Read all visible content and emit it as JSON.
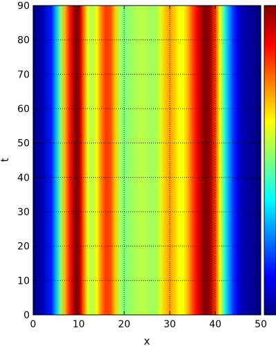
{
  "chart_data": {
    "type": "heatmap",
    "title": "",
    "xlabel": "x",
    "ylabel": "t",
    "xlim": [
      0,
      50
    ],
    "ylim": [
      0,
      90
    ],
    "x_ticks": [
      0,
      10,
      20,
      30,
      40,
      50
    ],
    "y_ticks": [
      0,
      10,
      20,
      30,
      40,
      50,
      60,
      70,
      80,
      90
    ],
    "grid": true,
    "grid_style": "dotted",
    "colormap": "jet",
    "colorbar": true,
    "colorbar_tick_labels": false,
    "pattern": "constant in t",
    "profile": {
      "x": [
        0,
        2,
        4,
        5,
        6,
        7,
        8,
        9,
        9.5,
        10,
        10.5,
        11,
        12,
        13,
        14,
        15,
        16,
        17,
        18,
        19,
        20,
        21,
        22,
        23,
        24,
        25,
        26,
        27,
        28,
        29,
        30,
        31,
        32,
        33,
        34,
        35,
        36,
        37,
        38,
        39,
        40,
        41,
        42,
        43,
        44,
        45,
        46,
        48,
        50
      ],
      "value": [
        0.0,
        0.05,
        0.15,
        0.3,
        0.5,
        0.7,
        0.85,
        0.96,
        1.0,
        0.97,
        0.9,
        0.78,
        0.6,
        0.55,
        0.62,
        0.75,
        0.82,
        0.8,
        0.68,
        0.55,
        0.5,
        0.52,
        0.54,
        0.55,
        0.56,
        0.55,
        0.53,
        0.54,
        0.6,
        0.68,
        0.72,
        0.68,
        0.62,
        0.62,
        0.7,
        0.8,
        0.88,
        0.96,
        1.0,
        0.96,
        0.82,
        0.62,
        0.42,
        0.28,
        0.17,
        0.1,
        0.05,
        0.02,
        0.0
      ]
    },
    "colors": {
      "jet": [
        "#00007f",
        "#0000ff",
        "#007fff",
        "#00ffff",
        "#7fff7f",
        "#ffff00",
        "#ff7f00",
        "#ff0000",
        "#7f0000"
      ]
    }
  }
}
